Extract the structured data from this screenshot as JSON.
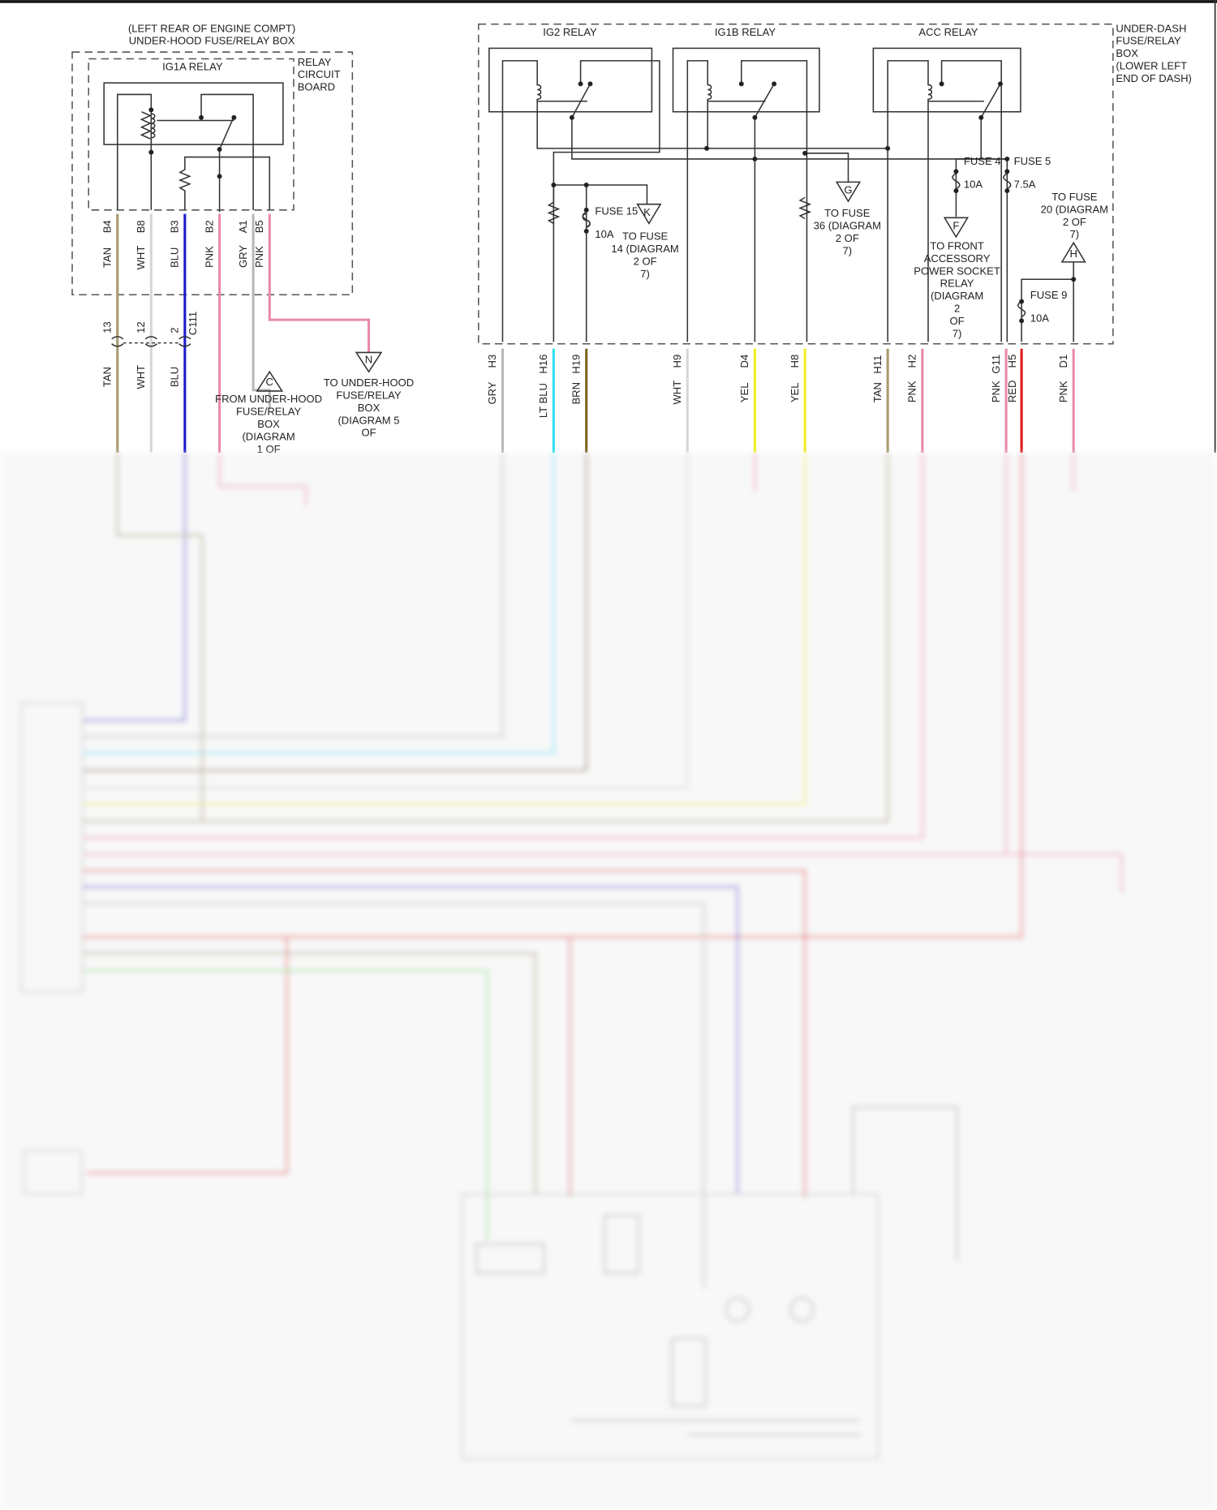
{
  "colors": {
    "TAN": "#a89a70",
    "WHT": "#d6d6d6",
    "BLU": "#1a1ad0",
    "PNK": "#e88aa8",
    "GRY": "#b8b8b8",
    "LT BLU": "#30e0f0",
    "BRN": "#7a6420",
    "YEL": "#f0f020",
    "RED": "#e01818",
    "GRN": "#7ee07e"
  },
  "left_box": {
    "title": [
      "(LEFT REAR OF ENGINE COMPT)",
      "UNDER-HOOD FUSE/RELAY BOX"
    ],
    "board": [
      "RELAY",
      "CIRCUIT",
      "BOARD"
    ],
    "relay": "IG1A RELAY",
    "pins": [
      "B4",
      "B8",
      "B3",
      "B2",
      "A1",
      "B5"
    ],
    "wire_colors": [
      "TAN",
      "WHT",
      "BLU",
      "PNK",
      "GRY",
      "PNK"
    ],
    "connector": "C111",
    "connector_pins": [
      "13",
      "12",
      "2"
    ],
    "lower_colors": [
      "TAN",
      "WHT",
      "BLU"
    ],
    "conn_c": "C",
    "conn_c_text": [
      "FROM UNDER-HOOD",
      "FUSE/RELAY",
      "BOX",
      "(DIAGRAM",
      "1 OF"
    ],
    "conn_n": "N",
    "conn_n_text": [
      "TO UNDER-HOOD",
      "FUSE/RELAY",
      "BOX",
      "(DIAGRAM 5",
      "OF"
    ]
  },
  "right_box": {
    "title": [
      "UNDER-DASH",
      "FUSE/RELAY",
      "BOX",
      "(LOWER LEFT",
      "END OF DASH)"
    ],
    "relays": [
      "IG2 RELAY",
      "IG1B RELAY",
      "ACC RELAY"
    ],
    "fuse15": {
      "name": "FUSE 15",
      "rating": "10A"
    },
    "fuse4": {
      "name": "FUSE 4",
      "rating": "10A"
    },
    "fuse5": {
      "name": "FUSE 5",
      "rating": "7.5A"
    },
    "fuse9": {
      "name": "FUSE 9",
      "rating": "10A"
    },
    "conn_k": "K",
    "conn_k_text": [
      "TO FUSE",
      "14 (DIAGRAM",
      "2 OF",
      "7)"
    ],
    "conn_g": "G",
    "conn_g_text": [
      "TO FUSE",
      "36 (DIAGRAM",
      "2 OF",
      "7)"
    ],
    "conn_f": "F",
    "conn_f_text": [
      "TO FRONT",
      "ACCESSORY",
      "POWER SOCKET",
      "RELAY",
      "(DIAGRAM",
      "2",
      "OF",
      "7)"
    ],
    "conn_h": "H",
    "conn_h_text": [
      "TO FUSE",
      "20 (DIAGRAM",
      "2 OF",
      "7)"
    ],
    "pins": [
      "H3",
      "H16",
      "H19",
      "H9",
      "D4",
      "H8",
      "H11",
      "H2",
      "G11",
      "H5",
      "D1"
    ],
    "wire_colors": [
      "GRY",
      "LT BLU",
      "BRN",
      "WHT",
      "YEL",
      "YEL",
      "TAN",
      "PNK",
      "PNK",
      "RED",
      "PNK"
    ]
  }
}
